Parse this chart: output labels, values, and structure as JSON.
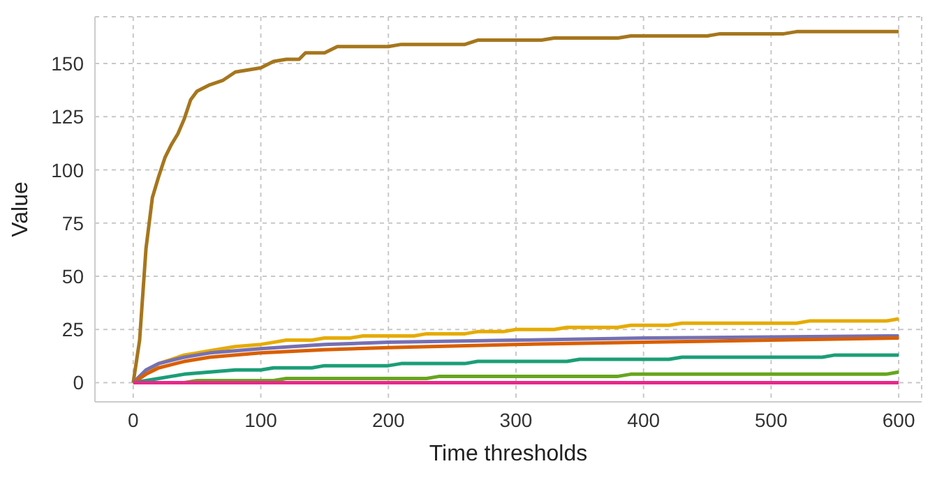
{
  "chart_data": {
    "type": "line",
    "xlabel": "Time thresholds",
    "ylabel": "Value",
    "xlim": [
      -30,
      618
    ],
    "xticks": [
      0,
      100,
      200,
      300,
      400,
      500,
      600
    ],
    "ylim": [
      -9,
      172
    ],
    "yticks": [
      0,
      25,
      50,
      75,
      100,
      125,
      150
    ],
    "grid": true,
    "marker": "none",
    "line_style": "solid",
    "series": [
      {
        "color": "#a6761d",
        "x": [
          0,
          5,
          10,
          15,
          20,
          25,
          30,
          35,
          40,
          45,
          50,
          60,
          70,
          80,
          90,
          100,
          110,
          120,
          130,
          135,
          150,
          160,
          200,
          210,
          260,
          270,
          320,
          330,
          380,
          390,
          450,
          460,
          510,
          520,
          600
        ],
        "values": [
          0,
          20,
          63,
          87,
          97,
          106,
          112,
          117,
          124,
          133,
          137,
          140,
          142,
          146,
          147,
          148,
          151,
          152,
          152,
          155,
          155,
          158,
          158,
          159,
          159,
          161,
          161,
          162,
          162,
          163,
          163,
          164,
          164,
          165,
          165
        ]
      },
      {
        "color": "#e6ab02",
        "x": [
          0,
          10,
          20,
          30,
          40,
          50,
          60,
          70,
          80,
          90,
          100,
          110,
          120,
          140,
          150,
          170,
          180,
          220,
          230,
          260,
          270,
          290,
          300,
          330,
          340,
          380,
          390,
          420,
          430,
          520,
          530,
          590,
          600
        ],
        "values": [
          0,
          5,
          9,
          11,
          13,
          14,
          15,
          16,
          17,
          17.5,
          18,
          19,
          20,
          20,
          21,
          21,
          22,
          22,
          23,
          23,
          24,
          24,
          25,
          25,
          26,
          26,
          27,
          27,
          28,
          28,
          29,
          29,
          30
        ]
      },
      {
        "color": "#7570b3",
        "x": [
          0,
          10,
          20,
          40,
          60,
          100,
          150,
          200,
          300,
          400,
          500,
          600
        ],
        "values": [
          0,
          6,
          9,
          12,
          14,
          16,
          18,
          19,
          20,
          21,
          21.5,
          22
        ]
      },
      {
        "color": "#d95f02",
        "x": [
          0,
          10,
          20,
          40,
          60,
          100,
          150,
          200,
          300,
          400,
          500,
          600
        ],
        "values": [
          0,
          4,
          7,
          10,
          12,
          14,
          15.5,
          16.5,
          18,
          19,
          20,
          21
        ]
      },
      {
        "color": "#1b9e77",
        "x": [
          0,
          10,
          20,
          30,
          40,
          60,
          80,
          100,
          110,
          140,
          150,
          200,
          210,
          260,
          270,
          340,
          350,
          420,
          430,
          540,
          550,
          600
        ],
        "values": [
          0,
          1,
          2,
          3,
          4,
          5,
          6,
          6,
          7,
          7,
          8,
          8,
          9,
          9,
          10,
          10,
          11,
          11,
          12,
          12,
          13,
          13
        ]
      },
      {
        "color": "#66a61e",
        "x": [
          0,
          40,
          50,
          110,
          120,
          230,
          240,
          380,
          390,
          590,
          600
        ],
        "values": [
          0,
          0,
          1,
          1,
          2,
          2,
          3,
          3,
          4,
          4,
          5
        ]
      },
      {
        "color": "#e7298a",
        "x": [
          0,
          600
        ],
        "values": [
          0,
          0
        ]
      }
    ]
  }
}
